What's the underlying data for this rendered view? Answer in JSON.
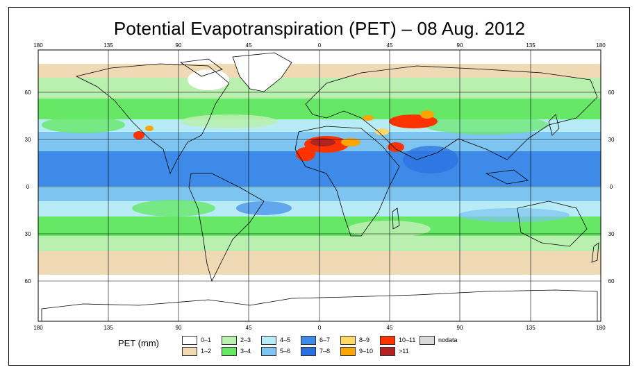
{
  "title": "Potential Evapotranspiration (PET) – 08 Aug. 2012",
  "lon_labels": [
    "180",
    "135",
    "90",
    "45",
    "0",
    "45",
    "90",
    "135",
    "180"
  ],
  "lat_labels": [
    "60",
    "30",
    "0",
    "30",
    "60"
  ],
  "legend": {
    "title": "PET (mm)",
    "items": [
      {
        "label": "0–1",
        "color": "#ffffff"
      },
      {
        "label": "1–2",
        "color": "#f0d9b5"
      },
      {
        "label": "2–3",
        "color": "#b9f0b0"
      },
      {
        "label": "3–4",
        "color": "#66e866"
      },
      {
        "label": "4–5",
        "color": "#b7ecf7"
      },
      {
        "label": "5–6",
        "color": "#7ec4f0"
      },
      {
        "label": "6–7",
        "color": "#3d8ae8"
      },
      {
        "label": "7–8",
        "color": "#2a6fe0"
      },
      {
        "label": "8–9",
        "color": "#ffd966"
      },
      {
        "label": "9–10",
        "color": "#ffa500"
      },
      {
        "label": "10–11",
        "color": "#ff3300"
      },
      {
        "label": ">11",
        "color": "#b22222"
      },
      {
        "label": "nodata",
        "color": "#d9d9d9"
      }
    ]
  }
}
